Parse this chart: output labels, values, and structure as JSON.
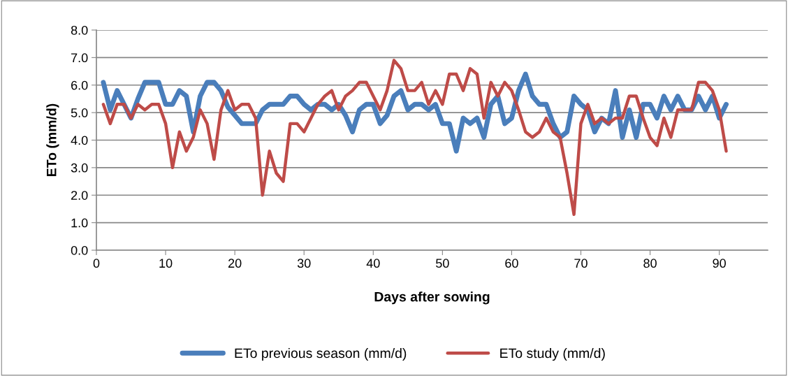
{
  "chart_data": {
    "type": "line",
    "xlabel": "Days after sowing",
    "ylabel": "ETo (mm/d)",
    "x": [
      1,
      2,
      3,
      4,
      5,
      6,
      7,
      8,
      9,
      10,
      11,
      12,
      13,
      14,
      15,
      16,
      17,
      18,
      19,
      20,
      21,
      22,
      23,
      24,
      25,
      26,
      27,
      28,
      29,
      30,
      31,
      32,
      33,
      34,
      35,
      36,
      37,
      38,
      39,
      40,
      41,
      42,
      43,
      44,
      45,
      46,
      47,
      48,
      49,
      50,
      51,
      52,
      53,
      54,
      55,
      56,
      57,
      58,
      59,
      60,
      61,
      62,
      63,
      64,
      65,
      66,
      67,
      68,
      69,
      70,
      71,
      72,
      73,
      74,
      75,
      76,
      77,
      78,
      79,
      80,
      81,
      82,
      83,
      84,
      85,
      86,
      87,
      88,
      89,
      90,
      91
    ],
    "series": [
      {
        "name": "ETo previous season (mm/d)",
        "color": "#4a7ebb",
        "values": [
          6.1,
          5.1,
          5.8,
          5.3,
          4.8,
          5.5,
          6.1,
          6.1,
          6.1,
          5.3,
          5.3,
          5.8,
          5.6,
          4.3,
          5.6,
          6.1,
          6.1,
          5.8,
          5.2,
          4.9,
          4.6,
          4.6,
          4.6,
          5.1,
          5.3,
          5.3,
          5.3,
          5.6,
          5.6,
          5.3,
          5.1,
          5.3,
          5.3,
          5.1,
          5.3,
          4.9,
          4.3,
          5.1,
          5.3,
          5.3,
          4.6,
          4.9,
          5.6,
          5.8,
          5.1,
          5.3,
          5.3,
          5.1,
          5.3,
          4.6,
          4.6,
          3.6,
          4.8,
          4.6,
          4.8,
          4.1,
          5.3,
          5.6,
          4.6,
          4.8,
          5.8,
          6.4,
          5.6,
          5.3,
          5.3,
          4.6,
          4.1,
          4.3,
          5.6,
          5.3,
          5.1,
          4.3,
          4.8,
          4.6,
          5.8,
          4.1,
          5.1,
          4.1,
          5.3,
          5.3,
          4.8,
          5.6,
          5.1,
          5.6,
          5.1,
          5.1,
          5.6,
          5.1,
          5.6,
          4.8,
          5.3
        ]
      },
      {
        "name": "ETo study (mm/d)",
        "color": "#be4b48",
        "values": [
          5.3,
          4.6,
          5.3,
          5.3,
          4.8,
          5.3,
          5.1,
          5.3,
          5.3,
          4.6,
          3.0,
          4.3,
          3.6,
          4.1,
          5.1,
          4.6,
          3.3,
          5.1,
          5.8,
          5.1,
          5.3,
          5.3,
          4.8,
          2.0,
          3.6,
          2.8,
          2.5,
          4.6,
          4.6,
          4.3,
          4.8,
          5.3,
          5.6,
          5.8,
          5.1,
          5.6,
          5.8,
          6.1,
          6.1,
          5.6,
          5.1,
          5.8,
          6.9,
          6.6,
          5.8,
          5.8,
          6.1,
          5.3,
          5.8,
          5.3,
          6.4,
          6.4,
          5.8,
          6.6,
          6.4,
          4.8,
          6.1,
          5.6,
          6.1,
          5.8,
          5.1,
          4.3,
          4.1,
          4.3,
          4.8,
          4.3,
          4.1,
          2.8,
          1.3,
          4.6,
          5.3,
          4.6,
          4.8,
          4.6,
          4.8,
          4.8,
          5.6,
          5.6,
          4.8,
          4.1,
          3.8,
          4.8,
          4.1,
          5.1,
          5.1,
          5.1,
          6.1,
          6.1,
          5.8,
          5.1,
          3.6
        ]
      }
    ],
    "xlim": [
      0,
      97
    ],
    "xticks": [
      0,
      10,
      20,
      30,
      40,
      50,
      60,
      70,
      80,
      90
    ],
    "ylim": [
      0,
      8
    ],
    "yticks": [
      {
        "value": 0,
        "label": "0.0"
      },
      {
        "value": 1,
        "label": "1.0"
      },
      {
        "value": 2,
        "label": "2.0"
      },
      {
        "value": 3,
        "label": "3.0"
      },
      {
        "value": 4,
        "label": "4.0"
      },
      {
        "value": 5,
        "label": "5.0"
      },
      {
        "value": 6,
        "label": "6.0"
      },
      {
        "value": 7,
        "label": "7.0"
      },
      {
        "value": 8,
        "label": "8.0"
      }
    ],
    "grid": "y",
    "legend": "bottom",
    "marker": "none",
    "line_style": "solid"
  }
}
